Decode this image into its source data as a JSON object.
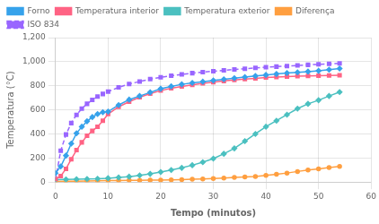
{
  "chart_data": {
    "type": "line",
    "xlabel": "Tempo (minutos)",
    "ylabel": "Temperatura (°C)",
    "xlim": [
      0,
      60
    ],
    "ylim": [
      0,
      1200
    ],
    "xticks": [
      0,
      10,
      20,
      30,
      40,
      50,
      60
    ],
    "yticks": [
      0,
      200,
      400,
      600,
      800,
      1000,
      1200
    ],
    "grid": true,
    "legend": "top",
    "series": [
      {
        "name": "Forno",
        "marker": "diamond",
        "line_style": "solid",
        "x": [
          0,
          1,
          2,
          3,
          4,
          5,
          6,
          7,
          8,
          9,
          10,
          12,
          14,
          16,
          18,
          20,
          22,
          24,
          26,
          28,
          30,
          32,
          34,
          36,
          38,
          40,
          42,
          44,
          46,
          48,
          50,
          52,
          54
        ],
        "values": [
          75,
          130,
          220,
          320,
          405,
          460,
          505,
          540,
          565,
          580,
          585,
          640,
          685,
          715,
          745,
          775,
          795,
          812,
          824,
          834,
          844,
          854,
          863,
          872,
          881,
          890,
          898,
          906,
          912,
          918,
          924,
          934,
          943
        ]
      },
      {
        "name": "Temperatura interior",
        "marker": "square",
        "line_style": "solid",
        "x": [
          0,
          1,
          2,
          3,
          4,
          5,
          6,
          7,
          8,
          9,
          10,
          12,
          14,
          16,
          18,
          20,
          22,
          24,
          26,
          28,
          30,
          32,
          34,
          36,
          38,
          40,
          42,
          44,
          46,
          48,
          50,
          52,
          54
        ],
        "values": [
          25,
          50,
          110,
          190,
          265,
          330,
          385,
          425,
          460,
          510,
          565,
          625,
          668,
          705,
          735,
          760,
          780,
          795,
          808,
          820,
          830,
          840,
          848,
          856,
          862,
          868,
          873,
          877,
          880,
          882,
          884,
          886,
          888
        ]
      },
      {
        "name": "Temperatura exterior",
        "marker": "diamond",
        "line_style": "solid",
        "x": [
          0,
          2,
          4,
          6,
          8,
          10,
          12,
          14,
          16,
          18,
          20,
          22,
          24,
          26,
          28,
          30,
          32,
          34,
          36,
          38,
          40,
          42,
          44,
          46,
          48,
          50,
          52,
          54
        ],
        "values": [
          20,
          22,
          24,
          26,
          28,
          32,
          38,
          45,
          55,
          68,
          83,
          100,
          118,
          140,
          165,
          195,
          235,
          280,
          340,
          400,
          460,
          510,
          560,
          610,
          650,
          680,
          715,
          748
        ]
      },
      {
        "name": "Diferença",
        "marker": "circle",
        "line_style": "solid",
        "x": [
          0,
          2,
          4,
          6,
          8,
          10,
          12,
          14,
          16,
          18,
          20,
          22,
          24,
          26,
          28,
          30,
          32,
          34,
          36,
          38,
          40,
          42,
          44,
          46,
          48,
          50,
          52,
          54
        ],
        "values": [
          5,
          7,
          8,
          9,
          10,
          12,
          13,
          14,
          15,
          16,
          17,
          19,
          21,
          23,
          26,
          30,
          34,
          38,
          42,
          47,
          55,
          64,
          75,
          88,
          100,
          110,
          120,
          130
        ]
      },
      {
        "name": "ISO 834",
        "marker": "square",
        "line_style": "dashed",
        "x": [
          0,
          1,
          2,
          3,
          4,
          5,
          6,
          7,
          8,
          9,
          10,
          12,
          14,
          16,
          18,
          20,
          22,
          24,
          26,
          28,
          30,
          32,
          34,
          36,
          38,
          40,
          42,
          44,
          46,
          48,
          50,
          52,
          54
        ],
        "values": [
          20,
          260,
          395,
          490,
          558,
          610,
          650,
          682,
          710,
          732,
          752,
          787,
          814,
          836,
          855,
          870,
          883,
          894,
          905,
          913,
          921,
          928,
          935,
          942,
          948,
          954,
          959,
          964,
          969,
          974,
          978,
          982,
          986
        ]
      }
    ]
  }
}
